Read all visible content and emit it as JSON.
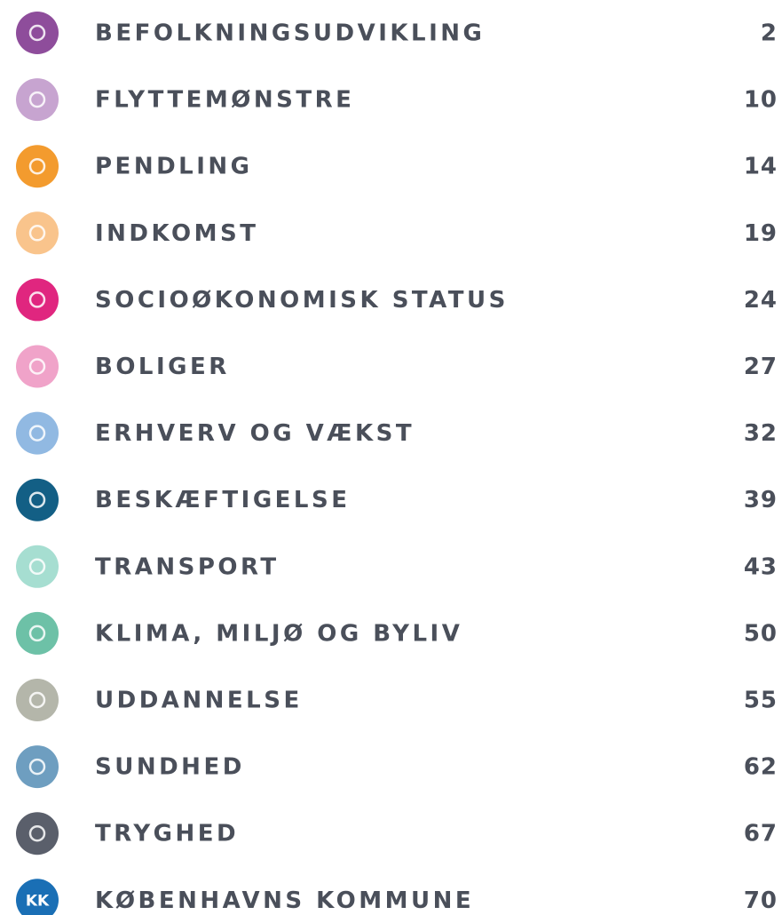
{
  "toc": {
    "entries": [
      {
        "title": "BEFOLKNINGSUDVIKLING",
        "page": 2,
        "color": "#8e4d9b"
      },
      {
        "title": "FLYTTEMØNSTRE",
        "page": 10,
        "color": "#c7a4d0"
      },
      {
        "title": "PENDLING",
        "page": 14,
        "color": "#f39b2e"
      },
      {
        "title": "INDKOMST",
        "page": 19,
        "color": "#f9c48c"
      },
      {
        "title": "SOCIOØKONOMISK STATUS",
        "page": 24,
        "color": "#e0267f"
      },
      {
        "title": "BOLIGER",
        "page": 27,
        "color": "#f0a3c9"
      },
      {
        "title": "ERHVERV OG VÆKST",
        "page": 32,
        "color": "#91b9e2"
      },
      {
        "title": "BESKÆFTIGELSE",
        "page": 39,
        "color": "#135f85"
      },
      {
        "title": "TRANSPORT",
        "page": 43,
        "color": "#a6ded1"
      },
      {
        "title": "KLIMA, MILJØ OG BYLIV",
        "page": 50,
        "color": "#6dc1a7"
      },
      {
        "title": "UDDANNELSE",
        "page": 55,
        "color": "#b4b6aa"
      },
      {
        "title": "SUNDHED",
        "page": 62,
        "color": "#6e9ec0"
      },
      {
        "title": "TRYGHED",
        "page": 67,
        "color": "#5a5f6b"
      },
      {
        "title": "KØBENHAVNS KOMMUNE",
        "page": 70,
        "color": "#1a6fb5",
        "icon_label": "KK"
      }
    ]
  }
}
